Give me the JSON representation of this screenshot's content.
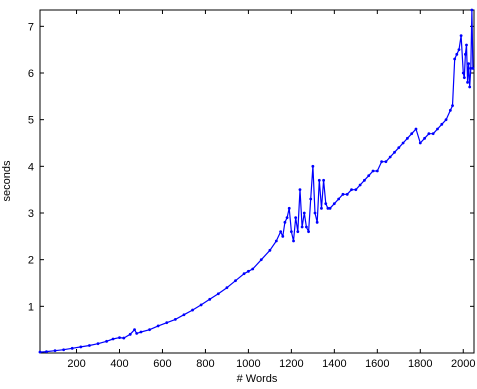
{
  "chart_data": {
    "type": "line",
    "title": "",
    "xlabel": "# Words",
    "ylabel": "seconds",
    "xlim": [
      30,
      2050
    ],
    "ylim": [
      0,
      7.35
    ],
    "grid": false,
    "legend": "none",
    "xticks": [
      200,
      400,
      600,
      800,
      1000,
      1200,
      1400,
      1600,
      1800,
      2000
    ],
    "yticks": [
      1,
      2,
      3,
      4,
      5,
      6,
      7
    ],
    "series": [
      {
        "color": "#0000ff",
        "marker": "dot",
        "x": [
          30,
          60,
          100,
          140,
          180,
          220,
          260,
          300,
          340,
          370,
          400,
          420,
          450,
          470,
          480,
          500,
          540,
          580,
          620,
          660,
          700,
          740,
          780,
          820,
          860,
          900,
          940,
          980,
          1000,
          1020,
          1060,
          1100,
          1130,
          1150,
          1160,
          1170,
          1180,
          1190,
          1200,
          1210,
          1220,
          1230,
          1240,
          1250,
          1260,
          1270,
          1280,
          1290,
          1300,
          1310,
          1320,
          1330,
          1340,
          1350,
          1360,
          1370,
          1380,
          1400,
          1420,
          1440,
          1460,
          1480,
          1500,
          1520,
          1540,
          1560,
          1580,
          1600,
          1620,
          1640,
          1660,
          1680,
          1700,
          1720,
          1740,
          1760,
          1780,
          1800,
          1820,
          1840,
          1860,
          1880,
          1900,
          1920,
          1940,
          1950,
          1960,
          1970,
          1980,
          1990,
          2000,
          2005,
          2010,
          2015,
          2020,
          2025,
          2030,
          2035,
          2040,
          2045
        ],
        "y": [
          0.02,
          0.03,
          0.05,
          0.07,
          0.1,
          0.13,
          0.16,
          0.2,
          0.25,
          0.3,
          0.33,
          0.32,
          0.4,
          0.5,
          0.42,
          0.45,
          0.5,
          0.58,
          0.65,
          0.72,
          0.82,
          0.92,
          1.03,
          1.15,
          1.27,
          1.4,
          1.55,
          1.7,
          1.75,
          1.8,
          2.0,
          2.2,
          2.4,
          2.6,
          2.5,
          2.8,
          2.9,
          3.1,
          2.6,
          2.4,
          2.9,
          2.6,
          3.5,
          2.7,
          3.0,
          2.7,
          2.6,
          3.3,
          4.0,
          3.0,
          2.8,
          3.7,
          3.1,
          3.7,
          3.2,
          3.1,
          3.1,
          3.2,
          3.3,
          3.4,
          3.4,
          3.5,
          3.5,
          3.6,
          3.7,
          3.8,
          3.9,
          3.9,
          4.1,
          4.1,
          4.2,
          4.3,
          4.4,
          4.5,
          4.6,
          4.7,
          4.8,
          4.5,
          4.6,
          4.7,
          4.7,
          4.8,
          4.9,
          5.0,
          5.2,
          5.3,
          6.3,
          6.4,
          6.5,
          6.8,
          6.0,
          5.9,
          6.4,
          6.6,
          5.8,
          6.2,
          5.7,
          6.1,
          7.35,
          6.1
        ]
      }
    ]
  }
}
